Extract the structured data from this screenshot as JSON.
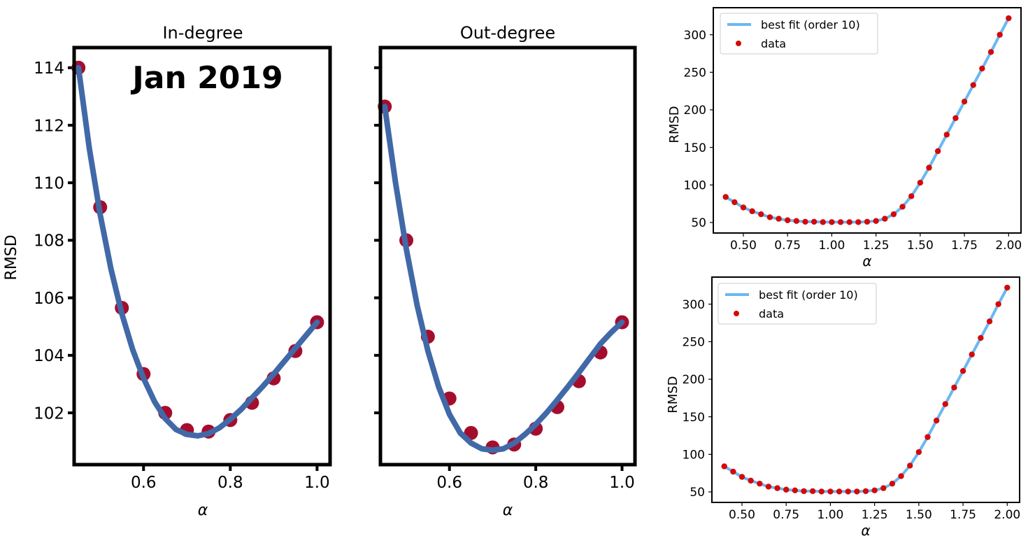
{
  "chart_data": [
    {
      "id": "in",
      "type": "line+scatter",
      "title": "In-degree",
      "annotation": "Jan 2019",
      "xlabel": "α",
      "ylabel": "RMSD",
      "xlim": [
        0.44,
        1.03
      ],
      "ylim": [
        100.2,
        114.7
      ],
      "xticks": [
        0.6,
        0.8,
        1.0
      ],
      "xtick_labels": [
        "0.6",
        "0.8",
        "1.0"
      ],
      "yticks": [
        102,
        104,
        106,
        108,
        110,
        112,
        114
      ],
      "ytick_labels": [
        "102",
        "104",
        "106",
        "108",
        "110",
        "112",
        "114"
      ],
      "points": {
        "x": [
          0.45,
          0.5,
          0.55,
          0.6,
          0.65,
          0.7,
          0.75,
          0.8,
          0.85,
          0.9,
          0.95,
          1.0
        ],
        "y": [
          114.0,
          109.15,
          105.65,
          103.35,
          102.0,
          101.4,
          101.35,
          101.75,
          102.35,
          103.2,
          104.15,
          105.15
        ]
      },
      "fit": {
        "x": [
          0.45,
          0.475,
          0.5,
          0.525,
          0.55,
          0.575,
          0.6,
          0.625,
          0.65,
          0.675,
          0.7,
          0.725,
          0.75,
          0.775,
          0.8,
          0.825,
          0.85,
          0.875,
          0.9,
          0.925,
          0.95,
          0.975,
          1.0
        ],
        "y": [
          114.0,
          111.2,
          108.9,
          107.0,
          105.45,
          104.2,
          103.2,
          102.4,
          101.8,
          101.42,
          101.25,
          101.2,
          101.28,
          101.48,
          101.78,
          102.12,
          102.52,
          102.92,
          103.35,
          103.8,
          104.25,
          104.7,
          105.15
        ]
      },
      "colors": {
        "line": "#4169a8",
        "marker": "#a50d2d"
      }
    },
    {
      "id": "out",
      "type": "line+scatter",
      "title": "Out-degree",
      "xlabel": "α",
      "xlim": [
        0.44,
        1.03
      ],
      "ylim": [
        100.2,
        114.7
      ],
      "xticks": [
        0.6,
        0.8,
        1.0
      ],
      "xtick_labels": [
        "0.6",
        "0.8",
        "1.0"
      ],
      "yticks": [
        102,
        104,
        106,
        108,
        110,
        112,
        114
      ],
      "points": {
        "x": [
          0.45,
          0.5,
          0.55,
          0.6,
          0.65,
          0.7,
          0.75,
          0.8,
          0.85,
          0.9,
          0.95,
          1.0
        ],
        "y": [
          112.65,
          108.0,
          104.65,
          102.5,
          101.3,
          100.8,
          100.9,
          101.45,
          102.2,
          103.1,
          104.1,
          105.15
        ]
      },
      "fit": {
        "x": [
          0.45,
          0.475,
          0.5,
          0.525,
          0.55,
          0.575,
          0.6,
          0.625,
          0.65,
          0.675,
          0.7,
          0.725,
          0.75,
          0.775,
          0.8,
          0.825,
          0.85,
          0.875,
          0.9,
          0.925,
          0.95,
          0.975,
          1.0
        ],
        "y": [
          112.65,
          110.0,
          107.7,
          105.75,
          104.15,
          102.9,
          101.95,
          101.3,
          100.95,
          100.75,
          100.7,
          100.75,
          100.95,
          101.25,
          101.6,
          102.0,
          102.45,
          102.92,
          103.4,
          103.9,
          104.4,
          104.8,
          105.15
        ]
      },
      "colors": {
        "line": "#4169a8",
        "marker": "#a50d2d"
      }
    },
    {
      "id": "r1",
      "type": "line+scatter",
      "xlabel": "α",
      "ylabel": "RMSD",
      "xlim": [
        0.33,
        2.07
      ],
      "ylim": [
        36,
        336
      ],
      "xticks": [
        0.5,
        0.75,
        1.0,
        1.25,
        1.5,
        1.75,
        2.0
      ],
      "xtick_labels": [
        "0.50",
        "0.75",
        "1.00",
        "1.25",
        "1.50",
        "1.75",
        "2.00"
      ],
      "yticks": [
        50,
        100,
        150,
        200,
        250,
        300
      ],
      "ytick_labels": [
        "50",
        "100",
        "150",
        "200",
        "250",
        "300"
      ],
      "legend": {
        "fit_label": "best fit (order 10)",
        "data_label": "data",
        "position": "upper-left"
      },
      "points": {
        "x": [
          0.4,
          0.45,
          0.5,
          0.55,
          0.6,
          0.65,
          0.7,
          0.75,
          0.8,
          0.85,
          0.9,
          0.95,
          1.0,
          1.05,
          1.1,
          1.15,
          1.2,
          1.25,
          1.3,
          1.35,
          1.4,
          1.45,
          1.5,
          1.55,
          1.6,
          1.65,
          1.7,
          1.75,
          1.8,
          1.85,
          1.9,
          1.95,
          2.0
        ],
        "y": [
          84,
          77,
          70,
          65,
          61,
          57,
          55,
          53,
          52,
          51,
          51,
          50.5,
          50.5,
          50.5,
          50.5,
          50.5,
          51,
          52,
          55,
          61,
          71,
          85,
          103,
          123,
          145,
          167,
          189,
          211,
          233,
          255,
          277,
          300,
          322
        ]
      },
      "fit": {
        "x": [
          0.4,
          0.45,
          0.5,
          0.55,
          0.6,
          0.65,
          0.7,
          0.75,
          0.8,
          0.85,
          0.9,
          0.95,
          1.0,
          1.05,
          1.1,
          1.15,
          1.2,
          1.25,
          1.3,
          1.35,
          1.4,
          1.45,
          1.5,
          1.55,
          1.6,
          1.65,
          1.7,
          1.75,
          1.8,
          1.85,
          1.9,
          1.95,
          2.0
        ],
        "y": [
          84,
          77,
          70,
          65,
          61,
          57,
          55,
          53,
          52,
          51,
          51,
          50.5,
          50.5,
          50.5,
          50.5,
          50.5,
          51,
          52,
          55,
          61,
          71,
          85,
          103,
          123,
          145,
          167,
          189,
          211,
          233,
          255,
          277,
          300,
          322
        ]
      },
      "colors": {
        "line": "#6ab8f2",
        "marker": "#d40a0a"
      }
    },
    {
      "id": "r2",
      "type": "line+scatter",
      "xlabel": "α",
      "ylabel": "RMSD",
      "xlim": [
        0.33,
        2.07
      ],
      "ylim": [
        36,
        336
      ],
      "xticks": [
        0.5,
        0.75,
        1.0,
        1.25,
        1.5,
        1.75,
        2.0
      ],
      "xtick_labels": [
        "0.50",
        "0.75",
        "1.00",
        "1.25",
        "1.50",
        "1.75",
        "2.00"
      ],
      "yticks": [
        50,
        100,
        150,
        200,
        250,
        300
      ],
      "ytick_labels": [
        "50",
        "100",
        "150",
        "200",
        "250",
        "300"
      ],
      "legend": {
        "fit_label": "best fit (order 10)",
        "data_label": "data",
        "position": "upper-left"
      },
      "points": {
        "x": [
          0.4,
          0.45,
          0.5,
          0.55,
          0.6,
          0.65,
          0.7,
          0.75,
          0.8,
          0.85,
          0.9,
          0.95,
          1.0,
          1.05,
          1.1,
          1.15,
          1.2,
          1.25,
          1.3,
          1.35,
          1.4,
          1.45,
          1.5,
          1.55,
          1.6,
          1.65,
          1.7,
          1.75,
          1.8,
          1.85,
          1.9,
          1.95,
          2.0
        ],
        "y": [
          84,
          77,
          70,
          65,
          61,
          57,
          55,
          53,
          52,
          51,
          51,
          50.5,
          50.5,
          50.5,
          50.5,
          50.5,
          51,
          52,
          55,
          61,
          71,
          85,
          103,
          123,
          145,
          167,
          189,
          211,
          233,
          255,
          277,
          300,
          322
        ]
      },
      "fit": {
        "x": [
          0.4,
          0.45,
          0.5,
          0.55,
          0.6,
          0.65,
          0.7,
          0.75,
          0.8,
          0.85,
          0.9,
          0.95,
          1.0,
          1.05,
          1.1,
          1.15,
          1.2,
          1.25,
          1.3,
          1.35,
          1.4,
          1.45,
          1.5,
          1.55,
          1.6,
          1.65,
          1.7,
          1.75,
          1.8,
          1.85,
          1.9,
          1.95,
          2.0
        ],
        "y": [
          84,
          77,
          70,
          65,
          61,
          57,
          55,
          53,
          52,
          51,
          51,
          50.5,
          50.5,
          50.5,
          50.5,
          50.5,
          51,
          52,
          55,
          61,
          71,
          85,
          103,
          123,
          145,
          167,
          189,
          211,
          233,
          255,
          277,
          300,
          322
        ]
      },
      "colors": {
        "line": "#6ab8f2",
        "marker": "#d40a0a"
      }
    }
  ]
}
